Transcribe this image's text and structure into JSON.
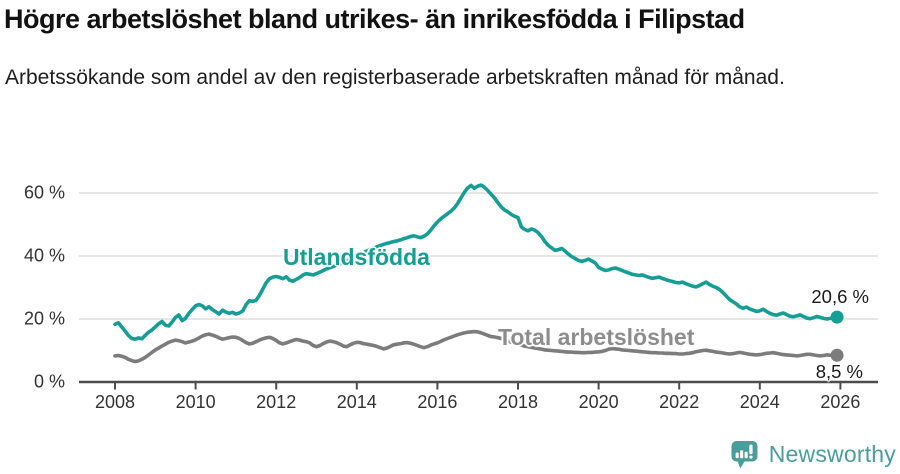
{
  "title": "Högre arbetslöshet bland utrikes- än inrikesfödda i Filipstad",
  "subtitle": "Arbetssökande som andel av den registerbaserade arbetskraften månad för månad.",
  "footer": {
    "brand": "Newsworthy",
    "brand_color": "#4a9d9a"
  },
  "colors": {
    "grid": "#dedede",
    "axis": "#4d4d4d",
    "tick_text": "#333333",
    "value_text": "#1a1a1a"
  },
  "chart_data": {
    "type": "line",
    "x_unit": "month",
    "x_start_year": 2008,
    "x_end_label_year": 2026,
    "x_ticks": [
      "2008",
      "2010",
      "2012",
      "2014",
      "2016",
      "2018",
      "2020",
      "2022",
      "2024",
      "2026"
    ],
    "y_ticks": [
      {
        "value": 0,
        "label": "0 %"
      },
      {
        "value": 20,
        "label": "20 %"
      },
      {
        "value": 40,
        "label": "40 %"
      },
      {
        "value": 60,
        "label": "60 %"
      }
    ],
    "ylim": [
      0,
      65
    ],
    "grid": "horizontal",
    "series": [
      {
        "name": "Utlandsfödda",
        "color": "#169d95",
        "label_color": "#169d95",
        "end_label": "20,6 %",
        "end_value": 20.6,
        "values": [
          18.3,
          18.8,
          17.5,
          16.2,
          14.8,
          13.8,
          13.6,
          14.0,
          13.7,
          14.8,
          15.8,
          16.5,
          17.5,
          18.5,
          19.2,
          18.0,
          17.8,
          19.0,
          20.5,
          21.3,
          19.5,
          20.2,
          21.8,
          23.0,
          24.2,
          24.6,
          24.2,
          23.2,
          23.9,
          23.0,
          22.3,
          21.6,
          22.8,
          22.2,
          21.8,
          22.1,
          21.6,
          21.9,
          22.5,
          24.5,
          25.8,
          25.6,
          25.9,
          27.5,
          29.5,
          31.5,
          32.8,
          33.3,
          33.5,
          33.2,
          32.8,
          33.4,
          32.3,
          32.0,
          32.6,
          33.2,
          34.0,
          34.4,
          34.2,
          34.0,
          34.4,
          34.9,
          35.4,
          35.9,
          36.3,
          36.7,
          37.1,
          37.6,
          38.1,
          38.5,
          39.0,
          39.5,
          40.0,
          40.5,
          41.1,
          41.6,
          42.1,
          42.5,
          42.9,
          43.3,
          43.7,
          44.0,
          44.3,
          44.6,
          44.8,
          45.1,
          45.5,
          45.8,
          46.2,
          46.4,
          46.1,
          45.8,
          46.3,
          47.0,
          48.2,
          49.6,
          50.8,
          51.8,
          52.6,
          53.4,
          54.2,
          55.2,
          56.6,
          58.4,
          60.2,
          61.6,
          62.4,
          61.5,
          62.2,
          62.5,
          61.8,
          60.8,
          59.6,
          58.4,
          57.0,
          55.6,
          54.6,
          54.0,
          53.2,
          52.6,
          52.2,
          49.2,
          48.4,
          48.0,
          48.6,
          48.2,
          47.4,
          46.2,
          44.6,
          43.4,
          42.6,
          41.8,
          42.0,
          42.4,
          41.6,
          40.6,
          39.8,
          39.2,
          38.6,
          38.3,
          38.6,
          39.0,
          38.4,
          37.8,
          36.4,
          35.8,
          35.4,
          35.6,
          36.0,
          36.2,
          35.8,
          35.4,
          35.0,
          34.6,
          34.2,
          34.0,
          33.8,
          34.0,
          33.6,
          33.2,
          32.9,
          33.1,
          33.3,
          32.9,
          32.5,
          32.2,
          31.9,
          31.6,
          31.5,
          31.7,
          31.2,
          30.8,
          30.4,
          30.2,
          30.6,
          31.2,
          31.7,
          31.0,
          30.4,
          30.0,
          29.4,
          28.4,
          27.3,
          26.2,
          25.5,
          24.8,
          23.9,
          23.4,
          23.8,
          23.2,
          22.8,
          22.4,
          22.6,
          23.1,
          22.4,
          21.8,
          21.4,
          21.2,
          21.6,
          21.9,
          21.4,
          20.9,
          20.7,
          21.0,
          21.3,
          20.8,
          20.3,
          20.1,
          20.4,
          20.8,
          20.5,
          20.2,
          20.0,
          20.2,
          20.4,
          20.6
        ]
      },
      {
        "name": "Total arbetslöshet",
        "color": "#7c7c7c",
        "label_color": "#8d8d8d",
        "end_label": "8,5 %",
        "end_value": 8.5,
        "values": [
          8.3,
          8.4,
          8.2,
          7.8,
          7.2,
          6.8,
          6.5,
          6.7,
          7.2,
          7.8,
          8.6,
          9.4,
          10.2,
          10.8,
          11.4,
          12.0,
          12.6,
          13.0,
          13.3,
          13.1,
          12.8,
          12.4,
          12.7,
          13.0,
          13.4,
          14.0,
          14.6,
          15.0,
          15.2,
          14.9,
          14.5,
          14.0,
          13.6,
          13.8,
          14.1,
          14.3,
          14.2,
          13.8,
          13.2,
          12.5,
          12.1,
          12.3,
          12.8,
          13.3,
          13.7,
          14.0,
          14.2,
          13.8,
          13.2,
          12.4,
          12.1,
          12.4,
          12.8,
          13.2,
          13.5,
          13.3,
          13.0,
          12.8,
          12.4,
          11.6,
          11.2,
          11.6,
          12.2,
          12.7,
          13.0,
          12.8,
          12.5,
          12.0,
          11.4,
          11.2,
          11.8,
          12.3,
          12.6,
          12.5,
          12.2,
          12.0,
          11.8,
          11.6,
          11.3,
          10.9,
          10.5,
          10.8,
          11.3,
          11.8,
          12.0,
          12.2,
          12.4,
          12.5,
          12.3,
          12.0,
          11.6,
          11.2,
          10.9,
          11.2,
          11.7,
          12.1,
          12.4,
          12.9,
          13.4,
          13.8,
          14.2,
          14.6,
          15.0,
          15.3,
          15.6,
          15.8,
          15.9,
          16.0,
          15.9,
          15.6,
          15.2,
          14.8,
          14.4,
          14.3,
          14.1,
          13.8,
          13.4,
          13.0,
          12.6,
          12.3,
          12.0,
          11.7,
          11.4,
          11.2,
          11.0,
          10.8,
          10.6,
          10.4,
          10.2,
          10.1,
          10.0,
          9.9,
          9.8,
          9.7,
          9.6,
          9.5,
          9.5,
          9.4,
          9.4,
          9.3,
          9.3,
          9.4,
          9.4,
          9.5,
          9.6,
          9.7,
          10.0,
          10.4,
          10.6,
          10.5,
          10.4,
          10.2,
          10.1,
          10.0,
          9.9,
          9.8,
          9.7,
          9.6,
          9.5,
          9.4,
          9.3,
          9.3,
          9.2,
          9.2,
          9.1,
          9.1,
          9.0,
          9.0,
          8.9,
          8.9,
          9.0,
          9.1,
          9.3,
          9.6,
          9.8,
          10.0,
          10.1,
          9.9,
          9.7,
          9.5,
          9.4,
          9.2,
          9.0,
          8.9,
          9.0,
          9.2,
          9.4,
          9.2,
          9.0,
          8.8,
          8.7,
          8.6,
          8.7,
          8.9,
          9.1,
          9.2,
          9.3,
          9.1,
          8.9,
          8.7,
          8.6,
          8.5,
          8.4,
          8.3,
          8.4,
          8.6,
          8.8,
          8.8,
          8.6,
          8.4,
          8.3,
          8.4,
          8.6,
          8.5,
          8.4,
          8.5
        ]
      }
    ]
  }
}
